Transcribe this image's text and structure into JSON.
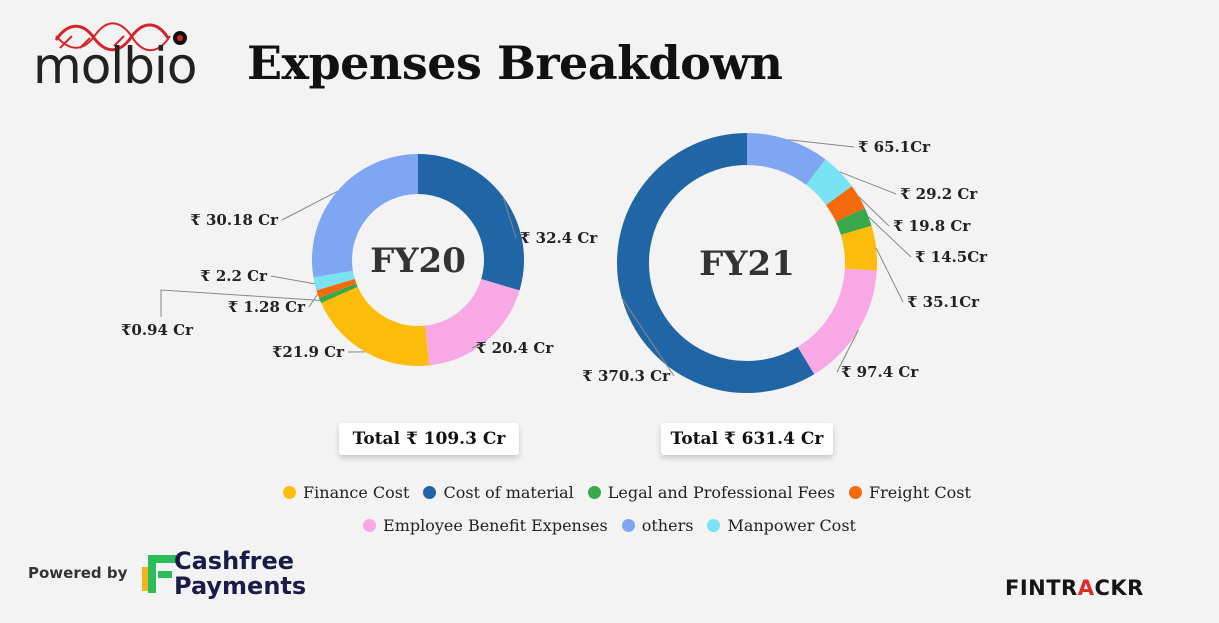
{
  "header": {
    "logo_text": "molbio",
    "title": "Expenses Breakdown"
  },
  "colors": {
    "Finance Cost": "#fbbd0a",
    "Cost of material": "#2066a6",
    "Legal and Professional Fees": "#3aa84a",
    "Freight Cost": "#f56a0c",
    "Employee Benefit Expenses": "#f9a8e6",
    "others": "#7ea6f2",
    "Manpower Cost": "#78e3f2"
  },
  "chart_data": [
    {
      "type": "pie",
      "donut": true,
      "center_label": "FY20",
      "total_label": "Total ₹ 109.3 Cr",
      "slices": [
        {
          "name": "Cost of material",
          "value": 32.4,
          "label": "₹ 32.4 Cr"
        },
        {
          "name": "Employee Benefit Expenses",
          "value": 20.4,
          "label": "₹ 20.4 Cr"
        },
        {
          "name": "Finance Cost",
          "value": 21.9,
          "label": "₹21.9 Cr"
        },
        {
          "name": "Legal and Professional Fees",
          "value": 0.94,
          "label": "₹0.94 Cr"
        },
        {
          "name": "Freight Cost",
          "value": 1.28,
          "label": "₹ 1.28 Cr"
        },
        {
          "name": "Manpower Cost",
          "value": 2.2,
          "label": "₹ 2.2 Cr"
        },
        {
          "name": "others",
          "value": 30.18,
          "label": "₹ 30.18 Cr"
        }
      ]
    },
    {
      "type": "pie",
      "donut": true,
      "center_label": "FY21",
      "total_label": "Total ₹ 631.4 Cr",
      "slices": [
        {
          "name": "others",
          "value": 65.1,
          "label": "₹ 65.1Cr"
        },
        {
          "name": "Manpower Cost",
          "value": 29.2,
          "label": "₹ 29.2 Cr"
        },
        {
          "name": "Freight Cost",
          "value": 19.8,
          "label": "₹ 19.8 Cr"
        },
        {
          "name": "Legal and Professional Fees",
          "value": 14.5,
          "label": "₹ 14.5Cr"
        },
        {
          "name": "Finance Cost",
          "value": 35.1,
          "label": "₹ 35.1Cr"
        },
        {
          "name": "Employee Benefit Expenses",
          "value": 97.4,
          "label": "₹ 97.4 Cr"
        },
        {
          "name": "Cost of material",
          "value": 370.3,
          "label": "₹ 370.3 Cr"
        }
      ]
    }
  ],
  "legend": {
    "row1": [
      "Finance Cost",
      "Cost of material",
      "Legal and Professional Fees",
      "Freight Cost"
    ],
    "row2": [
      "Employee Benefit Expenses",
      "others",
      "Manpower Cost"
    ]
  },
  "footer": {
    "powered_by": "Powered by",
    "brand_line1": "Cashfree",
    "brand_line2": "Payments",
    "fintrackr_a": "FINTR",
    "fintrackr_b": "A",
    "fintrackr_c": "CKR"
  }
}
